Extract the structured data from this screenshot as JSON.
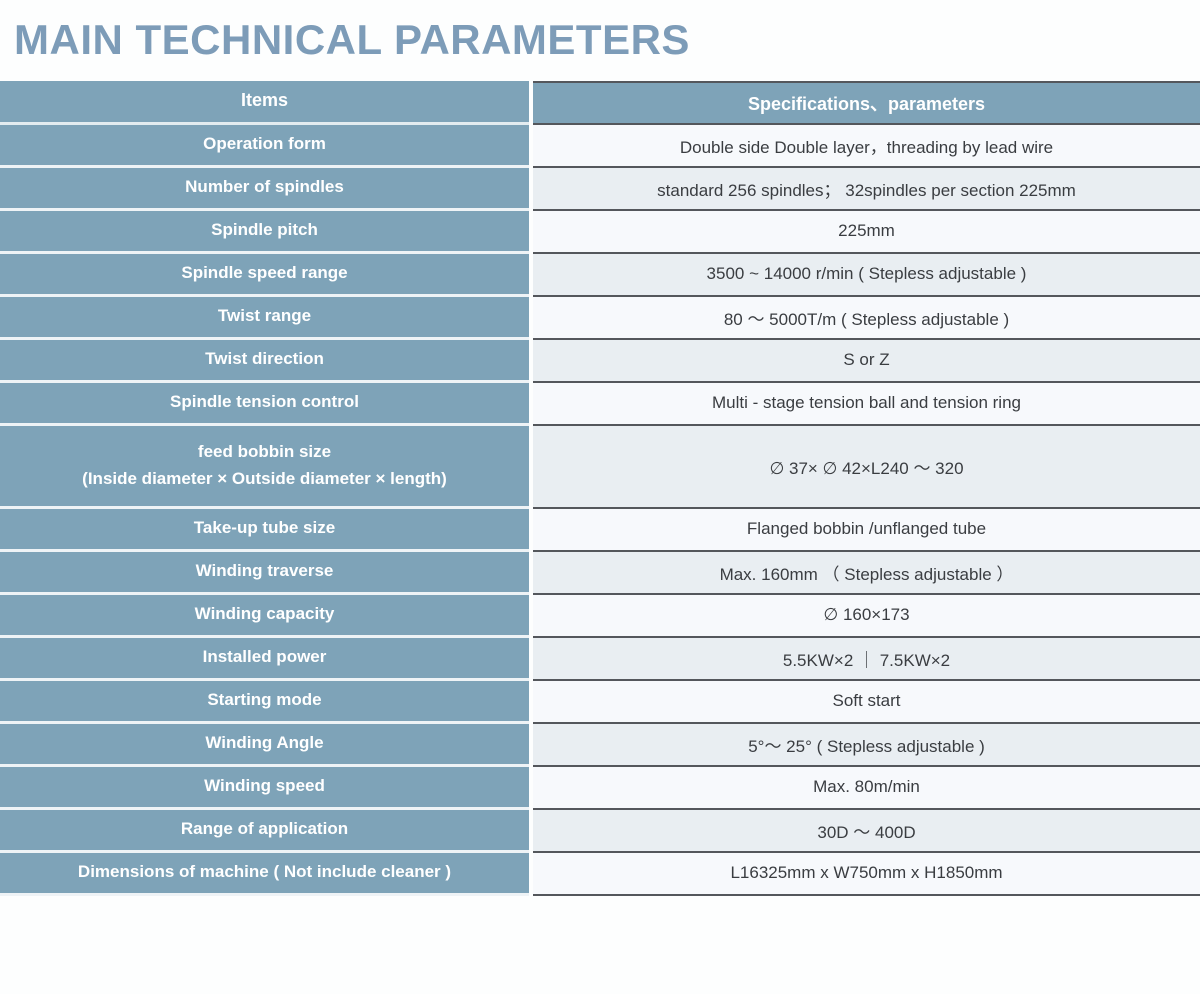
{
  "page": {
    "title": "MAIN TECHNICAL PARAMETERS"
  },
  "colors": {
    "accent_blue": "#7ea3b8",
    "title_blue": "#7d9cb8",
    "row_base": "#f7f9fc",
    "row_alt": "#e9eef2",
    "border_dark": "#54575c",
    "header_text": "#ffffff",
    "value_text": "#3a3d41"
  },
  "table": {
    "header": {
      "items_label": "Items",
      "spec_label": "Specifications、parameters"
    },
    "rows": [
      {
        "item": "Operation form",
        "value": "Double side Double layer，threading by lead wire"
      },
      {
        "item": "Number of spindles",
        "value": "standard 256 spindles； 32spindles per section 225mm"
      },
      {
        "item": "Spindle pitch",
        "value": "225mm"
      },
      {
        "item": "Spindle speed range",
        "value": "3500 ~ 14000 r/min ( Stepless adjustable )"
      },
      {
        "item": "Twist range",
        "value": "80 ～ 5000T/m ( Stepless adjustable )"
      },
      {
        "item": "Twist direction",
        "value": "S or Z"
      },
      {
        "item": "Spindle tension control",
        "value": "Multi - stage tension ball and tension ring"
      },
      {
        "item": "feed bobbin size",
        "item_line2": "(Inside diameter × Outside diameter × length)",
        "value": "∅ 37× ∅ 42×L240 ～ 320",
        "tall": true
      },
      {
        "item": "Take-up tube size",
        "value": "Flanged bobbin /unflanged tube"
      },
      {
        "item": "Winding traverse",
        "value": "Max. 160mm （ Stepless adjustable ）"
      },
      {
        "item": "Winding capacity",
        "value": "∅ 160×173"
      },
      {
        "item": "Installed power",
        "value": "5.5KW×2 ｜ 7.5KW×2"
      },
      {
        "item": "Starting mode",
        "value": "Soft start"
      },
      {
        "item": "Winding Angle",
        "value": "5°～ 25° ( Stepless adjustable )"
      },
      {
        "item": "Winding speed",
        "value": "Max. 80m/min"
      },
      {
        "item": "Range of application",
        "value": "30D ～ 400D"
      },
      {
        "item": "Dimensions of machine ( Not include cleaner )",
        "value": "L16325mm x W750mm x H1850mm"
      }
    ]
  }
}
